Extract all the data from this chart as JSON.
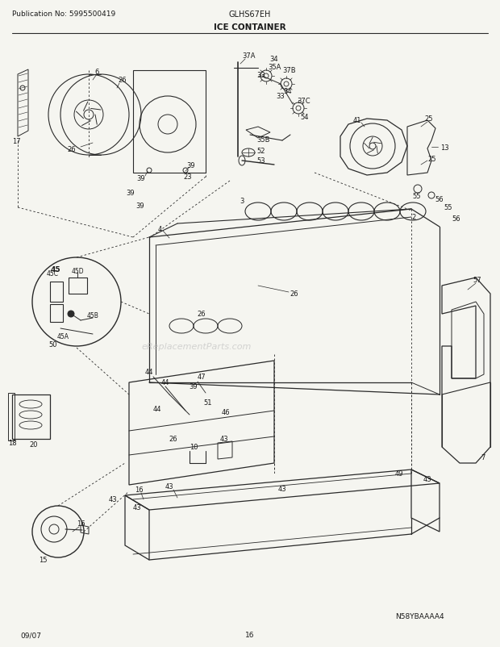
{
  "pub_no": "Publication No: 5995500419",
  "model": "GLHS67EH",
  "section": "ICE CONTAINER",
  "footer_left": "09/07",
  "footer_center": "16",
  "footer_right": "N58YBAAAA4",
  "watermark": "eReplacementParts.com",
  "bg_color": "#f5f5f0",
  "line_color": "#2a2a2a",
  "text_color": "#1a1a1a",
  "fig_width": 6.2,
  "fig_height": 8.03,
  "dpi": 100
}
